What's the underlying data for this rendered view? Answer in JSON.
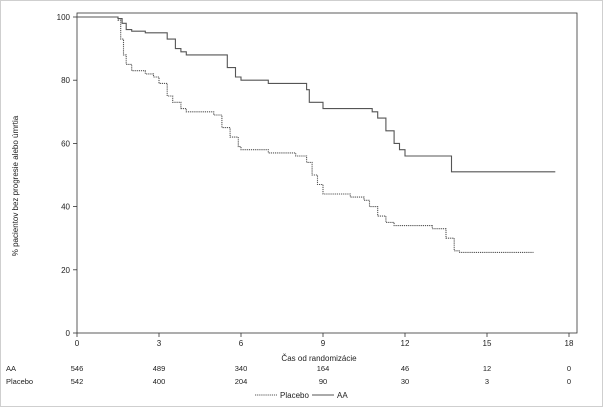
{
  "chart_data": {
    "type": "line",
    "xlabel": "Čas od randomizácie",
    "ylabel": "% pacientov bez progresie alebo úmrtia",
    "xlim": [
      0,
      18
    ],
    "ylim": [
      0,
      100
    ],
    "x_ticks": [
      0,
      3,
      6,
      9,
      12,
      15,
      18
    ],
    "y_ticks": [
      0,
      20,
      40,
      60,
      80,
      100
    ],
    "grid": false,
    "legend_position": "bottom",
    "series": [
      {
        "name": "AA",
        "line_style": "solid",
        "color": "#555555",
        "x": [
          0,
          1.5,
          1.65,
          1.8,
          2.0,
          2.5,
          3.0,
          3.3,
          3.6,
          3.8,
          4.0,
          5.0,
          5.5,
          5.8,
          6.0,
          7.0,
          8.0,
          8.4,
          8.5,
          9.0,
          10.0,
          10.5,
          10.8,
          11.0,
          11.3,
          11.6,
          11.8,
          12.0,
          12.5,
          13.0,
          13.6,
          13.7,
          14.0,
          15.0,
          16.0,
          17.5
        ],
        "y": [
          100,
          99.5,
          98,
          96,
          95.5,
          95,
          95,
          93,
          90,
          89,
          88,
          88,
          84,
          81,
          80,
          79,
          79,
          77,
          73,
          71,
          71,
          71,
          70,
          68,
          64,
          60,
          58,
          56,
          56,
          56,
          56,
          51,
          51,
          51,
          51,
          51
        ]
      },
      {
        "name": "Placebo",
        "line_style": "dashed",
        "color": "#555555",
        "x": [
          0,
          1.5,
          1.6,
          1.7,
          1.8,
          2.0,
          2.5,
          2.8,
          3.0,
          3.3,
          3.5,
          3.8,
          4.0,
          5.0,
          5.3,
          5.6,
          5.9,
          6.0,
          7.0,
          8.0,
          8.4,
          8.6,
          8.8,
          9.0,
          10.0,
          10.5,
          10.7,
          11.0,
          11.3,
          11.6,
          12.0,
          13.0,
          13.5,
          13.8,
          14.0,
          15.0,
          16.0,
          16.7
        ],
        "y": [
          100,
          99,
          93,
          88,
          85,
          83,
          82,
          81,
          79,
          75,
          73,
          71,
          70,
          69,
          65,
          62,
          59,
          58,
          57,
          56,
          54,
          50,
          47,
          44,
          43,
          42,
          40,
          37,
          35,
          34,
          34,
          33,
          30,
          26,
          25.5,
          25.5,
          25.5,
          25.5
        ]
      }
    ],
    "risk_table": {
      "times": [
        0,
        3,
        6,
        9,
        12,
        15,
        18
      ],
      "rows": [
        {
          "label": "AA",
          "counts": [
            "546",
            "489",
            "340",
            "164",
            "46",
            "12",
            "0"
          ]
        },
        {
          "label": "Placebo",
          "counts": [
            "542",
            "400",
            "204",
            "90",
            "30",
            "3",
            "0"
          ]
        }
      ]
    },
    "legend": [
      {
        "label": "Placebo",
        "line_style": "dashed"
      },
      {
        "label": "AA",
        "line_style": "solid"
      }
    ]
  }
}
